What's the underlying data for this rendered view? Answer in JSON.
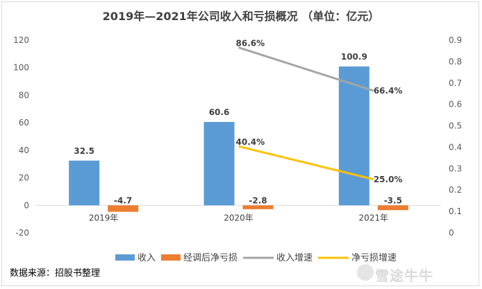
{
  "chart_data": {
    "type": "bar",
    "title": "2019年—2021年公司收入和亏损概况  （单位：亿元）",
    "categories": [
      "2019年",
      "2020年",
      "2021年"
    ],
    "bar_series": [
      {
        "name": "收入",
        "color": "#5b9bd5",
        "values": [
          32.5,
          60.6,
          100.9
        ],
        "labels": [
          "32.5",
          "60.6",
          "100.9"
        ]
      },
      {
        "name": "经调后净亏损",
        "color": "#ed7d31",
        "values": [
          -4.7,
          -2.8,
          -3.5
        ],
        "labels": [
          "-4.7",
          "-2.8",
          "-3.5"
        ]
      }
    ],
    "line_series": [
      {
        "name": "收入增速",
        "color": "#a5a5a5",
        "x_index": [
          1,
          2
        ],
        "values": [
          0.866,
          0.664
        ],
        "labels": [
          "86.6%",
          "66.4%"
        ]
      },
      {
        "name": "净亏损增速",
        "color": "#ffc000",
        "x_index": [
          1,
          2
        ],
        "values": [
          0.404,
          0.25
        ],
        "labels": [
          "40.4%",
          "25.0%"
        ]
      }
    ],
    "y_left": {
      "min": -20,
      "max": 120,
      "step": 20,
      "ticks": [
        "-20",
        "0",
        "20",
        "40",
        "60",
        "80",
        "100",
        "120"
      ]
    },
    "y_right": {
      "min": 0,
      "max": 0.9,
      "step": 0.1,
      "ticks": [
        "0",
        "0.1",
        "0.2",
        "0.3",
        "0.4",
        "0.5",
        "0.6",
        "0.7",
        "0.8",
        "0.9"
      ]
    },
    "grid": false,
    "legend": "bottom"
  },
  "footer": {
    "source": "数据来源：招股书整理",
    "watermark": "雪途牛牛"
  }
}
